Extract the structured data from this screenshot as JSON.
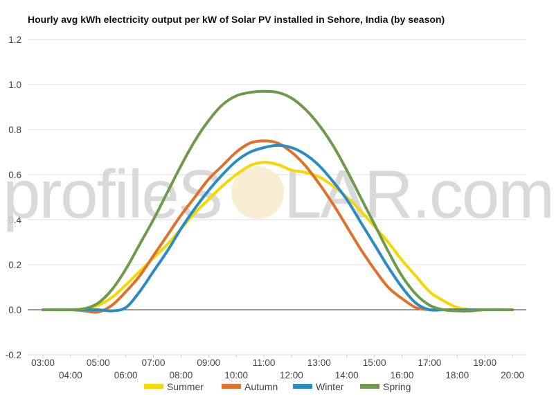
{
  "watermark": {
    "text_left": "profileS",
    "text_right": "LAR.com"
  },
  "chart_data": {
    "type": "line",
    "title": "Hourly avg kWh electricity output per kW of Solar PV installed in Sehore, India (by season)",
    "xlabel": "",
    "ylabel": "",
    "ylim": [
      -0.2,
      1.2
    ],
    "yticks": [
      "-0.2",
      "0.0",
      "0.2",
      "0.4",
      "0.6",
      "0.8",
      "1.0",
      "1.2"
    ],
    "x_range": [
      3,
      20
    ],
    "xtick_labels": [
      "03:00",
      "04:00",
      "05:00",
      "06:00",
      "07:00",
      "08:00",
      "09:00",
      "10:00",
      "11:00",
      "12:00",
      "13:00",
      "14:00",
      "15:00",
      "16:00",
      "17:00",
      "18:00",
      "19:00",
      "20:00"
    ],
    "grid": true,
    "legend_position": "bottom",
    "series": [
      {
        "name": "Summer",
        "color": "#f5d800",
        "x": [
          3,
          4,
          4.5,
          5,
          5.5,
          6,
          6.5,
          7,
          7.5,
          8,
          8.5,
          9,
          9.5,
          10,
          10.5,
          11,
          11.5,
          12,
          12.5,
          13,
          13.5,
          14,
          14.5,
          15,
          15.5,
          16,
          16.5,
          17,
          17.5,
          18,
          18.5,
          19,
          20
        ],
        "y": [
          0,
          0,
          0.005,
          0.02,
          0.055,
          0.11,
          0.17,
          0.23,
          0.29,
          0.36,
          0.43,
          0.49,
          0.55,
          0.6,
          0.64,
          0.655,
          0.645,
          0.62,
          0.61,
          0.59,
          0.55,
          0.5,
          0.44,
          0.37,
          0.3,
          0.22,
          0.15,
          0.08,
          0.04,
          0.01,
          0,
          0,
          0
        ]
      },
      {
        "name": "Autumn",
        "color": "#e0702a",
        "x": [
          3,
          4,
          4.5,
          5,
          5.5,
          6,
          6.5,
          7,
          7.5,
          8,
          8.5,
          9,
          9.5,
          10,
          10.5,
          11,
          11.5,
          12,
          12.5,
          13,
          13.5,
          14,
          14.5,
          15,
          15.5,
          16,
          16.5,
          17,
          17.5,
          18,
          19,
          20
        ],
        "y": [
          0,
          0,
          -0.005,
          -0.01,
          0.02,
          0.08,
          0.15,
          0.24,
          0.33,
          0.42,
          0.5,
          0.58,
          0.64,
          0.7,
          0.74,
          0.75,
          0.74,
          0.7,
          0.64,
          0.56,
          0.47,
          0.37,
          0.27,
          0.18,
          0.1,
          0.05,
          0.01,
          0,
          0,
          0,
          0,
          0
        ]
      },
      {
        "name": "Winter",
        "color": "#2b8cc4",
        "x": [
          3,
          4,
          5,
          5.5,
          6,
          6.5,
          7,
          7.5,
          8,
          8.5,
          9,
          9.5,
          10,
          10.5,
          11,
          11.5,
          12,
          12.5,
          13,
          13.5,
          14,
          14.5,
          15,
          15.5,
          16,
          16.5,
          17,
          17.5,
          18,
          19,
          20
        ],
        "y": [
          0,
          0,
          0,
          -0.005,
          0.01,
          0.08,
          0.17,
          0.26,
          0.36,
          0.45,
          0.53,
          0.6,
          0.66,
          0.7,
          0.72,
          0.73,
          0.72,
          0.69,
          0.64,
          0.57,
          0.49,
          0.39,
          0.29,
          0.19,
          0.1,
          0.03,
          0,
          0,
          0,
          0,
          0
        ]
      },
      {
        "name": "Spring",
        "color": "#6e9a4e",
        "x": [
          3,
          4,
          4.5,
          5,
          5.5,
          6,
          6.5,
          7,
          7.5,
          8,
          8.5,
          9,
          9.5,
          10,
          10.5,
          11,
          11.5,
          12,
          12.5,
          13,
          13.5,
          14,
          14.5,
          15,
          15.5,
          16,
          16.5,
          17,
          17.5,
          18,
          18.5,
          19,
          20
        ],
        "y": [
          0,
          0,
          0.005,
          0.03,
          0.09,
          0.18,
          0.29,
          0.4,
          0.52,
          0.64,
          0.75,
          0.84,
          0.91,
          0.95,
          0.965,
          0.97,
          0.965,
          0.94,
          0.89,
          0.82,
          0.73,
          0.62,
          0.5,
          0.38,
          0.26,
          0.15,
          0.07,
          0.02,
          0,
          -0.005,
          -0.005,
          0,
          0
        ]
      }
    ]
  }
}
